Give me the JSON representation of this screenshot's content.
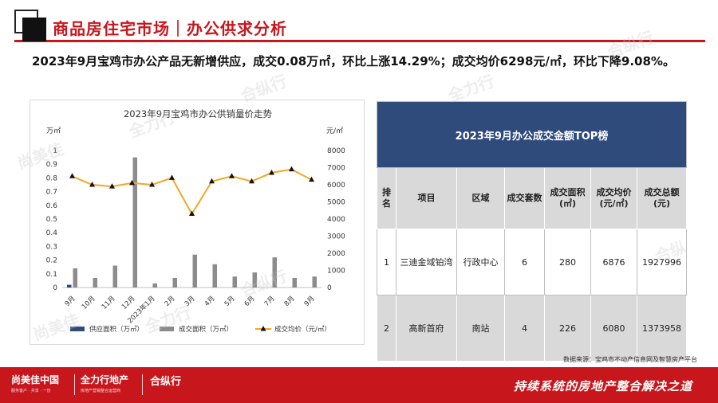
{
  "header": {
    "title": "商品房住宅市场｜办公供求分析"
  },
  "summary": "2023年9月宝鸡市办公产品无新增供应，成交0.08万㎡，环比上涨14.29%；成交均价6298元/㎡，环比下降9.08%。",
  "chart_data": {
    "type": "bar",
    "title": "2023年9月宝鸡市办公供销量价走势",
    "y_left_unit": "万㎡",
    "y_right_unit": "元/㎡",
    "ylim_left": [
      0,
      1
    ],
    "ylim_right": [
      0,
      8000
    ],
    "y_left_ticks": [
      "0",
      "0.1",
      "0.2",
      "0.3",
      "0.4",
      "0.5",
      "0.6",
      "0.7",
      "0.8",
      "0.9",
      "1"
    ],
    "y_right_ticks": [
      "0",
      "1000",
      "2000",
      "3000",
      "4000",
      "5000",
      "6000",
      "7000",
      "8000"
    ],
    "categories": [
      "9月",
      "10月",
      "11月",
      "12月",
      "2023年1月",
      "2月",
      "3月",
      "4月",
      "5月",
      "6月",
      "7月",
      "8月",
      "9月"
    ],
    "series": [
      {
        "name": "供应面积（万㎡）",
        "type": "bar",
        "axis": "left",
        "color": "#2f4b7c",
        "values": [
          0.02,
          0,
          0,
          0,
          0,
          0,
          0,
          0,
          0,
          0,
          0,
          0,
          0
        ]
      },
      {
        "name": "成交面积（万㎡）",
        "type": "bar",
        "axis": "left",
        "color": "#8c8c8c",
        "values": [
          0.14,
          0.07,
          0.16,
          0.95,
          0.03,
          0.07,
          0.24,
          0.17,
          0.08,
          0.11,
          0.22,
          0.07,
          0.08
        ]
      },
      {
        "name": "成交均价（元/㎡）",
        "type": "line",
        "axis": "right",
        "color": "#f5a623",
        "values": [
          6500,
          6000,
          5900,
          6100,
          6000,
          6400,
          4300,
          6200,
          6500,
          6200,
          6700,
          6900,
          6298
        ]
      }
    ],
    "grid": false,
    "legend_position": "bottom"
  },
  "table": {
    "title": "2023年9月办公成交金额TOP榜",
    "headers": [
      "排名",
      "项目",
      "区域",
      "成交套数",
      "成交面积(㎡)",
      "成交均价(元/㎡)",
      "成交总额(元)"
    ],
    "rows": [
      [
        "1",
        "三迪金域铂湾",
        "行政中心",
        "6",
        "280",
        "6876",
        "1927996"
      ],
      [
        "2",
        "高新首府",
        "南站",
        "4",
        "226",
        "6080",
        "1373958"
      ]
    ]
  },
  "source": "数据来源：宝鸡市不动产信息网及智慧房产平台",
  "footer": {
    "logo1": "尚美佳中国",
    "logo1_sub": "服务客户 · 共享 · 一份",
    "logo2": "全力行地产",
    "logo2_sub": "房地产营销整合运营商",
    "logo3": "合纵行",
    "slogan": "持续系统的房地产整合解决之道"
  }
}
